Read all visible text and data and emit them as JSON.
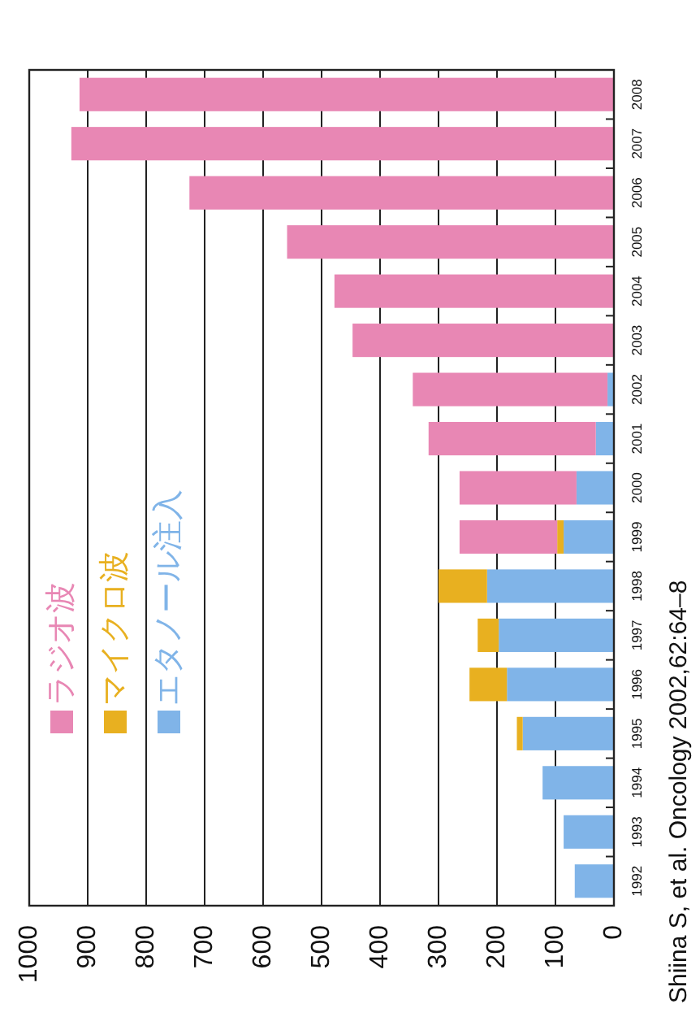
{
  "chart_data": {
    "type": "bar",
    "orientation": "horizontal",
    "stacked": true,
    "categories": [
      "2008",
      "2007",
      "2006",
      "2005",
      "2004",
      "2003",
      "2002",
      "2001",
      "2000",
      "1999",
      "1998",
      "1997",
      "1996",
      "1995",
      "1994",
      "1993",
      "1992"
    ],
    "series": [
      {
        "name": "エタノール注入",
        "color": "#80b4e8",
        "values": [
          null,
          null,
          null,
          null,
          null,
          null,
          11,
          31,
          64,
          86,
          217,
          197,
          183,
          156,
          122,
          86,
          67
        ]
      },
      {
        "name": "マイクロ波",
        "color": "#e8b020",
        "values": [
          null,
          null,
          null,
          null,
          null,
          null,
          null,
          null,
          null,
          11,
          83,
          36,
          64,
          10,
          null,
          null,
          null
        ]
      },
      {
        "name": "ラジオ波",
        "color": "#e887b4",
        "values": [
          914,
          928,
          726,
          559,
          478,
          447,
          333,
          286,
          200,
          167,
          null,
          null,
          null,
          null,
          null,
          null,
          null
        ]
      }
    ],
    "xlim": [
      1000,
      0
    ],
    "xticks": [
      1000,
      900,
      800,
      700,
      600,
      500,
      400,
      300,
      200,
      100,
      0
    ],
    "grid": "x",
    "legend": "bottom left",
    "annotations": [
      "Shiina S, et al. Oncology 2002,62:64–8"
    ]
  }
}
